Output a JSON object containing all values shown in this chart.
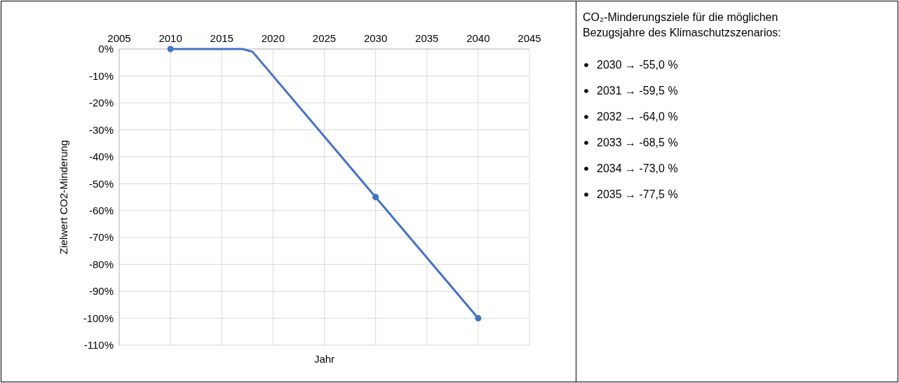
{
  "chart_data": {
    "type": "line",
    "xlabel": "Jahr",
    "ylabel": "Zielwert CO2-Minderung",
    "x": [
      2010,
      2017,
      2018,
      2030,
      2040
    ],
    "series": [
      {
        "color": "#4472c4",
        "values": [
          0,
          0,
          -1,
          -55,
          -100
        ],
        "marker": "none"
      },
      {
        "type": "scatter",
        "color": "#4472c4",
        "x": [
          2010,
          2030,
          2040
        ],
        "values": [
          0,
          -55,
          -100
        ],
        "marker": "circle"
      }
    ],
    "xlim": [
      2005,
      2045
    ],
    "xticks": [
      2005,
      2010,
      2015,
      2020,
      2025,
      2030,
      2035,
      2040,
      2045
    ],
    "ylim": [
      -110,
      0
    ],
    "yticks": [
      {
        "value": 0,
        "label": "0%"
      },
      {
        "value": -10,
        "label": "-10%"
      },
      {
        "value": -20,
        "label": "-20%"
      },
      {
        "value": -30,
        "label": "-30%"
      },
      {
        "value": -40,
        "label": "-40%"
      },
      {
        "value": -50,
        "label": "-50%"
      },
      {
        "value": -60,
        "label": "-60%"
      },
      {
        "value": -70,
        "label": "-70%"
      },
      {
        "value": -80,
        "label": "-80%"
      },
      {
        "value": -90,
        "label": "-90%"
      },
      {
        "value": -100,
        "label": "-100%"
      },
      {
        "value": -110,
        "label": "-110%"
      }
    ],
    "grid": true,
    "annotations": [
      "CO₂-Minderungsziele für die möglichen",
      "Bezugsjahre des Klimaschutzszenarios:",
      "2030 → -55,0 %",
      "2031 → -59,5 %",
      "2032 → -64,0 %",
      "2033 → -68,5 %",
      "2034 → -73,0 %",
      "2035 → -77,5 %"
    ]
  }
}
